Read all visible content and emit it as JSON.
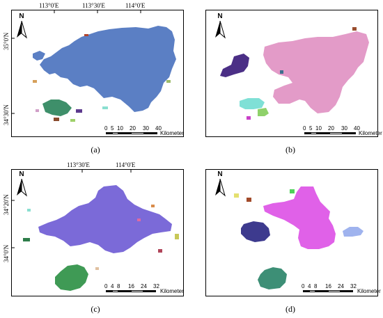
{
  "panels": {
    "a": {
      "caption": "(a)",
      "top_ticks": [
        "113°0'E",
        "113°30'E",
        "114°0'E"
      ],
      "left_ticks": [
        "35°0'N",
        "34°30'N"
      ],
      "north": "N",
      "scale_numbers": [
        "0",
        "5",
        "10",
        "20",
        "30",
        "40"
      ],
      "scale_unit": "Kilometer"
    },
    "b": {
      "caption": "(b)",
      "north": "N",
      "scale_numbers": [
        "0",
        "5",
        "10",
        "20",
        "30",
        "40"
      ],
      "scale_unit": "Kilometer"
    },
    "c": {
      "caption": "(c)",
      "top_ticks": [
        "113°30'E",
        "114°0'E"
      ],
      "left_ticks": [
        "34°20'N",
        "34°0'N"
      ],
      "north": "N",
      "scale_numbers": [
        "0",
        "4",
        "8",
        "16",
        "24",
        "32"
      ],
      "scale_unit": "Kilometer"
    },
    "d": {
      "caption": "(d)",
      "north": "N",
      "scale_numbers": [
        "0",
        "4",
        "8",
        "16",
        "24",
        "32"
      ],
      "scale_unit": "Kilometer"
    }
  },
  "colors": {
    "a_main": "#5b7fc4",
    "a_secondary": "#3e8f6a",
    "b_main": "#e39bc8",
    "b_purple": "#4b2f86",
    "b_cyan": "#7fe0d6",
    "b_green": "#8fd16a",
    "c_main": "#7b6ad8",
    "c_secondary": "#3f9a55",
    "d_magenta": "#e061e8",
    "d_navy": "#3d3a8e",
    "d_blue": "#9fb3ee",
    "d_teal": "#3d8f76"
  }
}
